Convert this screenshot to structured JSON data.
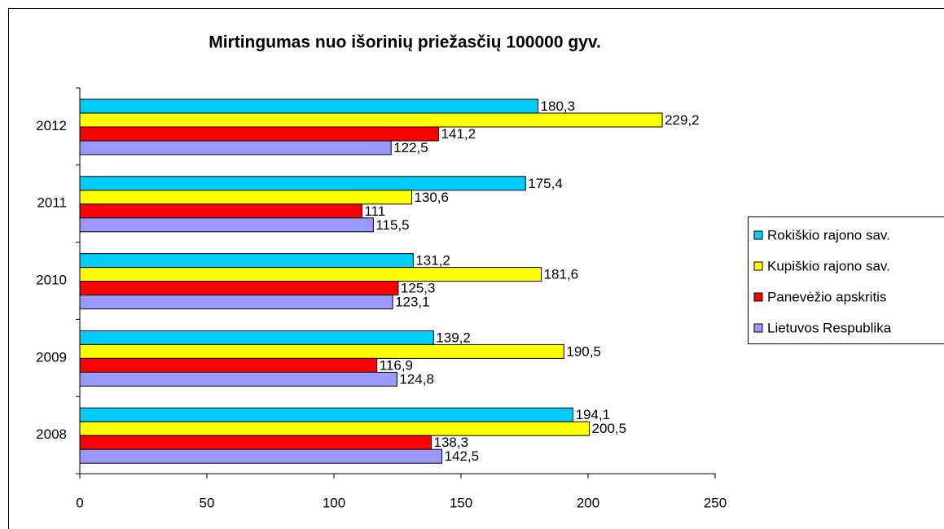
{
  "chart_data": {
    "type": "bar",
    "orientation": "horizontal",
    "title": "Mirtingumas nuo išorinių priežasčių 100000 gyv.",
    "categories": [
      "2008",
      "2009",
      "2010",
      "2011",
      "2012"
    ],
    "series": [
      {
        "name": "Rokiškio rajono sav.",
        "color": "#00ccff",
        "values": [
          194.1,
          139.2,
          131.2,
          175.4,
          180.3
        ],
        "value_labels": [
          "194,1",
          "139,2",
          "131,2",
          "175,4",
          "180,3"
        ]
      },
      {
        "name": "Kupiškio rajono sav.",
        "color": "#ffff00",
        "values": [
          200.5,
          190.5,
          181.6,
          130.6,
          229.2
        ],
        "value_labels": [
          "200,5",
          "190,5",
          "181,6",
          "130,6",
          "229,2"
        ]
      },
      {
        "name": "Panevėžio apskritis",
        "color": "#ff0000",
        "values": [
          138.3,
          116.9,
          125.3,
          111,
          141.2
        ],
        "value_labels": [
          "138,3",
          "116,9",
          "125,3",
          "111",
          "141,2"
        ]
      },
      {
        "name": "Lietuvos Respublika",
        "color": "#9999ff",
        "values": [
          142.5,
          124.8,
          123.1,
          115.5,
          122.5
        ],
        "value_labels": [
          "142,5",
          "124,8",
          "123,1",
          "115,5",
          "122,5"
        ]
      }
    ],
    "xlim": [
      0,
      250
    ],
    "xticks": [
      0,
      50,
      100,
      150,
      200,
      250
    ],
    "legend": "right"
  }
}
